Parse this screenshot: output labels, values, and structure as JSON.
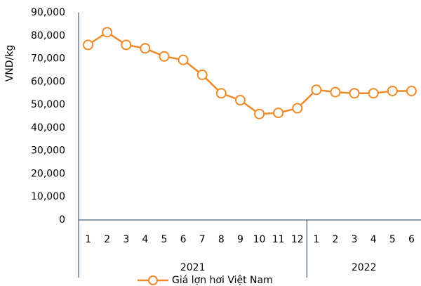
{
  "chart_data": {
    "type": "line",
    "y_label": "VND/kg",
    "categories": [
      "1",
      "2",
      "3",
      "4",
      "5",
      "6",
      "7",
      "8",
      "9",
      "10",
      "11",
      "12",
      "1",
      "2",
      "3",
      "4",
      "5",
      "6"
    ],
    "x_groups": [
      {
        "label": "2021",
        "size": 12
      },
      {
        "label": "2022",
        "size": 6
      }
    ],
    "series": [
      {
        "name": "Giá lợn hơi Việt Nam",
        "color": "#ee8a2a",
        "values": [
          76000,
          81500,
          76000,
          74500,
          71000,
          69500,
          63000,
          55000,
          52000,
          46000,
          46500,
          48500,
          56500,
          55500,
          55000,
          55000,
          56000,
          56000
        ]
      }
    ],
    "ylim": [
      0,
      90000
    ],
    "yticks": [
      0,
      {
        "value": 10000,
        "label": "10,000"
      },
      {
        "value": 20000,
        "label": "20,000"
      },
      {
        "value": 30000,
        "label": "30,000"
      },
      {
        "value": 40000,
        "label": "40,000"
      },
      {
        "value": 50000,
        "label": "50,000"
      },
      {
        "value": 60000,
        "label": "60,000"
      },
      {
        "value": 70000,
        "label": "70,000"
      },
      {
        "value": 80000,
        "label": "80,000"
      },
      {
        "value": 90000,
        "label": "90,000"
      }
    ],
    "grid": false,
    "legend": "bottom"
  }
}
